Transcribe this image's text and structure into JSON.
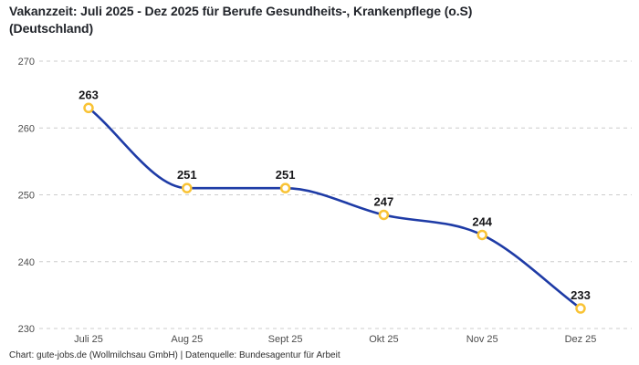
{
  "title_line1": "Vakanzzeit: Juli 2025 - Dez 2025 für Berufe Gesundheits-, Krankenpflege (o.S)",
  "title_line2": "(Deutschland)",
  "footer": "Chart: gute-jobs.de (Wollmilchsau GmbH) | Datenquelle: Bundesagentur für Arbeit",
  "colors": {
    "line": "#1e3ba6",
    "marker_stroke": "#f9c335",
    "marker_fill": "#ffffff",
    "grid": "#cccccc",
    "tick_text": "#4d4d4d",
    "value_text": "#17171a"
  },
  "chart_data": {
    "type": "line",
    "title": "Vakanzzeit: Juli 2025 - Dez 2025 für Berufe Gesundheits-, Krankenpflege (o.S) (Deutschland)",
    "categories": [
      "Juli 25",
      "Aug 25",
      "Sept 25",
      "Okt 25",
      "Nov 25",
      "Dez 25"
    ],
    "values": [
      263,
      251,
      251,
      247,
      244,
      233
    ],
    "point_labels": [
      263,
      251,
      251,
      247,
      244,
      233
    ],
    "xlabel": "",
    "ylabel": "",
    "ylim": [
      230,
      270
    ],
    "yticks": [
      230,
      240,
      250,
      260,
      270
    ],
    "grid": "horizontal-dashed",
    "legend": "none",
    "smooth": true,
    "source": "Bundesagentur für Arbeit",
    "chart_credit": "gute-jobs.de (Wollmilchsau GmbH)"
  }
}
